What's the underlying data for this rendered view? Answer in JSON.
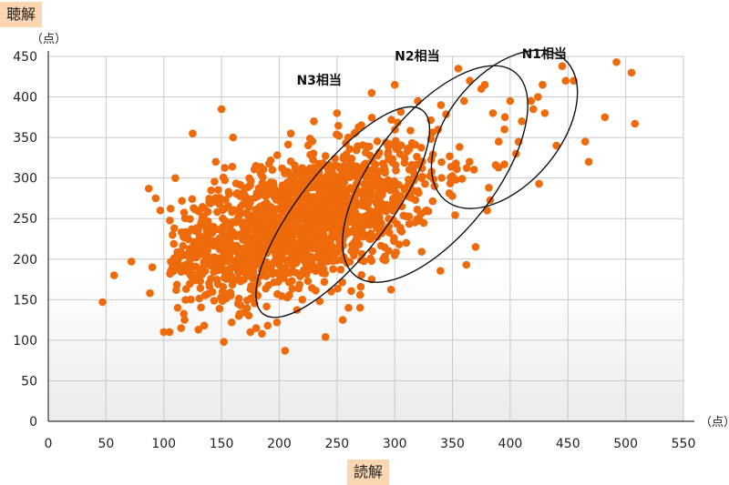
{
  "chart_data": {
    "type": "scatter",
    "y_tag": "聴解",
    "x_tag": "読解",
    "y_unit": "（点）",
    "x_unit": "（点）",
    "xlim": [
      0,
      550
    ],
    "ylim": [
      0,
      450
    ],
    "x_ticks": [
      0,
      50,
      100,
      150,
      200,
      250,
      300,
      350,
      400,
      450,
      500,
      550
    ],
    "y_ticks": [
      0,
      50,
      100,
      150,
      200,
      250,
      300,
      350,
      400,
      450
    ],
    "grid": true,
    "point_color": "#ee6a0a",
    "outlier_points": [
      [
        47,
        147
      ],
      [
        57,
        180
      ],
      [
        72,
        197
      ],
      [
        87,
        287
      ],
      [
        88,
        158
      ],
      [
        90,
        190
      ],
      [
        93,
        275
      ],
      [
        97,
        260
      ],
      [
        100,
        110
      ],
      [
        105,
        110
      ],
      [
        110,
        300
      ],
      [
        112,
        140
      ],
      [
        115,
        115
      ],
      [
        118,
        125
      ],
      [
        125,
        355
      ],
      [
        130,
        113
      ],
      [
        135,
        118
      ],
      [
        145,
        320
      ],
      [
        150,
        385
      ],
      [
        152,
        98
      ],
      [
        160,
        350
      ],
      [
        165,
        130
      ],
      [
        175,
        110
      ],
      [
        180,
        115
      ],
      [
        185,
        108
      ],
      [
        190,
        118
      ],
      [
        198,
        122
      ],
      [
        205,
        87
      ],
      [
        240,
        104
      ],
      [
        210,
        355
      ],
      [
        230,
        370
      ],
      [
        250,
        380
      ],
      [
        265,
        355
      ],
      [
        280,
        405
      ],
      [
        300,
        415
      ],
      [
        320,
        395
      ],
      [
        340,
        390
      ],
      [
        355,
        435
      ],
      [
        360,
        395
      ],
      [
        365,
        420
      ],
      [
        375,
        410
      ],
      [
        378,
        415
      ],
      [
        385,
        380
      ],
      [
        390,
        345
      ],
      [
        395,
        360
      ],
      [
        400,
        395
      ],
      [
        405,
        330
      ],
      [
        410,
        370
      ],
      [
        418,
        395
      ],
      [
        420,
        385
      ],
      [
        424,
        400
      ],
      [
        428,
        415
      ],
      [
        430,
        380
      ],
      [
        440,
        340
      ],
      [
        445,
        438
      ],
      [
        448,
        420
      ],
      [
        455,
        420
      ],
      [
        465,
        345
      ],
      [
        468,
        320
      ],
      [
        482,
        375
      ],
      [
        492,
        443
      ],
      [
        505,
        430
      ],
      [
        508,
        367
      ],
      [
        425,
        293
      ],
      [
        362,
        193
      ],
      [
        370,
        215
      ],
      [
        380,
        260
      ],
      [
        310,
        220
      ],
      [
        300,
        205
      ],
      [
        290,
        200
      ],
      [
        280,
        175
      ],
      [
        270,
        140
      ],
      [
        260,
        140
      ],
      [
        255,
        125
      ],
      [
        245,
        160
      ],
      [
        235,
        148
      ],
      [
        220,
        150
      ]
    ],
    "cluster": {
      "n": 1600,
      "cx": 215,
      "cy": 245,
      "sx": 60,
      "sy": 47,
      "rho": 0.55,
      "xmin": 105,
      "xmax": 420,
      "ymin": 120,
      "ymax": 400,
      "seed": 12345
    },
    "ellipses": [
      {
        "label": "N3相当",
        "cx": 255,
        "cy": 258,
        "rx": 112,
        "ry": 38,
        "angle_deg": 52
      },
      {
        "label": "N2相当",
        "cx": 335,
        "cy": 305,
        "rx": 112,
        "ry": 52,
        "angle_deg": 52
      },
      {
        "label": "N1相当",
        "cx": 395,
        "cy": 360,
        "rx": 80,
        "ry": 48,
        "angle_deg": 50
      }
    ],
    "annotations": [
      {
        "text": "N3相当",
        "x": 215,
        "y": 415
      },
      {
        "text": "N2相当",
        "x": 300,
        "y": 445
      },
      {
        "text": "N1相当",
        "x": 410,
        "y": 448
      }
    ]
  }
}
